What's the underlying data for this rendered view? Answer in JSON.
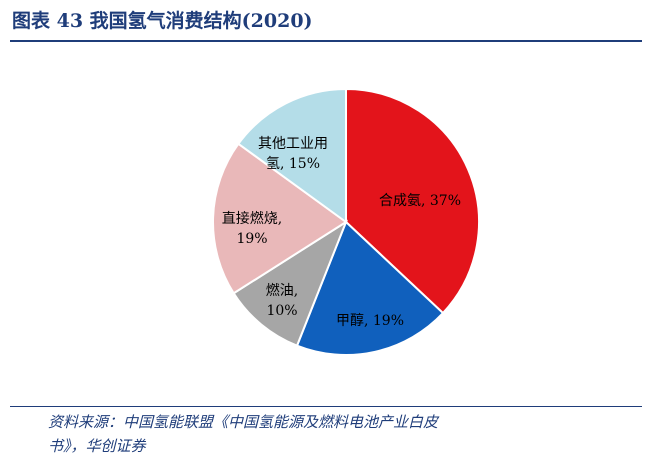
{
  "figure": {
    "title": "图表 43  我国氢气消费结构(2020)",
    "source_lines": [
      "资料来源：中国氢能联盟《中国氢能源及燃料电池产业白皮",
      "书》，华创证券"
    ]
  },
  "chart_data": {
    "type": "pie",
    "title": "图表 43  我国氢气消费结构(2020)",
    "unit": "%",
    "start_angle_deg": 0,
    "direction": "clockwise",
    "legend": "none",
    "slices": [
      {
        "name": "合成氨",
        "value": 37,
        "color": "#e3141b",
        "label_lines": [
          "合成氨, 37%"
        ]
      },
      {
        "name": "甲醇",
        "value": 19,
        "color": "#1060bd",
        "label_lines": [
          "甲醇, 19%"
        ]
      },
      {
        "name": "燃油",
        "value": 10,
        "color": "#a6a6a6",
        "label_lines": [
          "燃油,",
          "10%"
        ]
      },
      {
        "name": "直接燃烧",
        "value": 19,
        "color": "#e9b8b9",
        "label_lines": [
          "直接燃烧,",
          "19%"
        ]
      },
      {
        "name": "其他工业用氢",
        "value": 15,
        "color": "#b4dde8",
        "label_lines": [
          "其他工业用",
          "氢, 15%"
        ]
      }
    ]
  }
}
